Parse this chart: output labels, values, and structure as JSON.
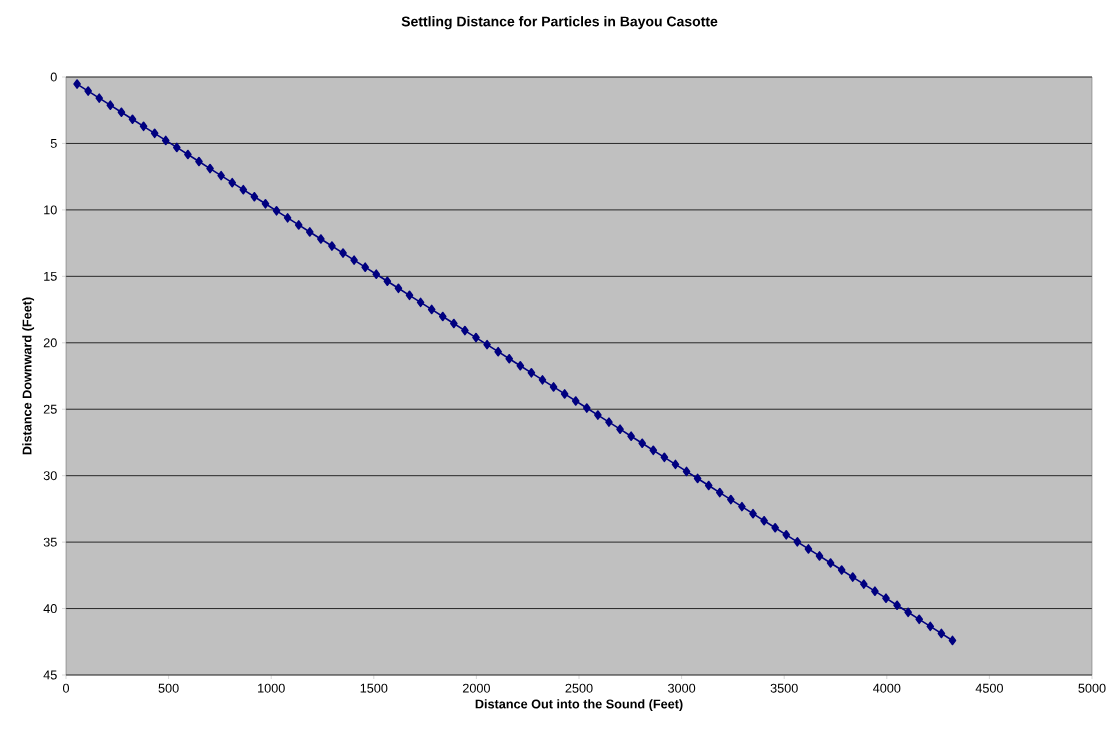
{
  "chart_data": {
    "type": "line",
    "title": "Settling Distance for Particles in Bayou Casotte",
    "xlabel": "Distance Out into the Sound (Feet)",
    "ylabel": "Distance Downward (Feet)",
    "x": [
      54,
      108,
      162,
      216,
      270,
      324,
      378,
      432,
      486,
      540,
      594,
      648,
      702,
      756,
      810,
      864,
      918,
      972,
      1026,
      1080,
      1134,
      1188,
      1242,
      1296,
      1350,
      1404,
      1458,
      1512,
      1566,
      1620,
      1674,
      1728,
      1782,
      1836,
      1890,
      1944,
      1998,
      2052,
      2106,
      2160,
      2214,
      2268,
      2322,
      2376,
      2430,
      2484,
      2538,
      2592,
      2646,
      2700,
      2754,
      2808,
      2862,
      2916,
      2970,
      3024,
      3078,
      3132,
      3186,
      3240,
      3294,
      3348,
      3402,
      3456,
      3510,
      3564,
      3618,
      3672,
      3726,
      3780,
      3834,
      3888,
      3942,
      3996,
      4050,
      4104,
      4158,
      4212,
      4266,
      4320
    ],
    "series": [
      {
        "color": "#000080",
        "values": [
          0.53,
          1.06,
          1.59,
          2.12,
          2.65,
          3.18,
          3.71,
          4.24,
          4.77,
          5.3,
          5.83,
          6.36,
          6.89,
          7.42,
          7.95,
          8.48,
          9.01,
          9.54,
          10.07,
          10.6,
          11.13,
          11.66,
          12.19,
          12.72,
          13.25,
          13.78,
          14.31,
          14.84,
          15.37,
          15.9,
          16.43,
          16.96,
          17.49,
          18.02,
          18.55,
          19.08,
          19.61,
          20.14,
          20.67,
          21.2,
          21.73,
          22.26,
          22.79,
          23.32,
          23.85,
          24.38,
          24.91,
          25.44,
          25.97,
          26.5,
          27.03,
          27.56,
          28.09,
          28.62,
          29.15,
          29.68,
          30.21,
          30.74,
          31.27,
          31.8,
          32.33,
          32.86,
          33.39,
          33.92,
          34.45,
          34.98,
          35.51,
          36.04,
          36.57,
          37.1,
          37.63,
          38.16,
          38.69,
          39.22,
          39.75,
          40.28,
          40.81,
          41.34,
          41.87,
          42.4
        ]
      }
    ],
    "xlim": [
      0,
      5000
    ],
    "ylim": [
      45,
      0
    ],
    "xticks": [
      0,
      500,
      1000,
      1500,
      2000,
      2500,
      3000,
      3500,
      4000,
      4500,
      5000
    ],
    "yticks": [
      0,
      5,
      10,
      15,
      20,
      25,
      30,
      35,
      40,
      45
    ],
    "grid": "y",
    "marker": "diamond",
    "line_style": "solid"
  }
}
